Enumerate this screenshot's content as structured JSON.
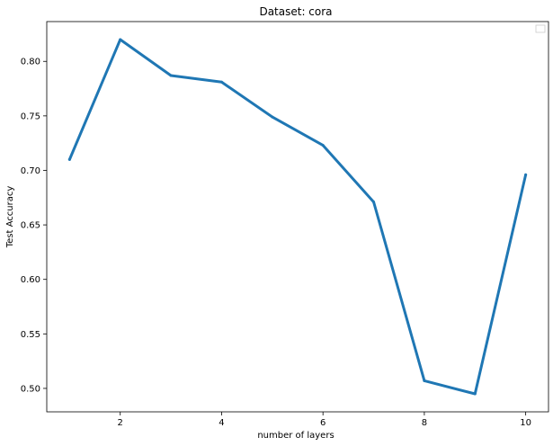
{
  "chart_data": {
    "type": "line",
    "title": "Dataset: cora",
    "xlabel": "number of layers",
    "ylabel": "Test Accuracy",
    "x": [
      1,
      2,
      3,
      4,
      5,
      6,
      7,
      8,
      9,
      10
    ],
    "series": [
      {
        "values": [
          0.71,
          0.82,
          0.787,
          0.781,
          0.749,
          0.723,
          0.671,
          0.507,
          0.495,
          0.696
        ],
        "color": "#1f77b4"
      }
    ],
    "xlim": [
      0.55,
      10.45
    ],
    "ylim": [
      0.4785,
      0.8365
    ],
    "xticks": [
      2,
      4,
      6,
      8,
      10
    ],
    "xtick_labels": [
      "2",
      "4",
      "6",
      "8",
      "10"
    ],
    "yticks": [
      0.5,
      0.55,
      0.6,
      0.65,
      0.7,
      0.75,
      0.8
    ],
    "ytick_labels": [
      "0.50",
      "0.55",
      "0.60",
      "0.65",
      "0.70",
      "0.75",
      "0.80"
    ],
    "grid": false,
    "legend": {
      "location": "top-right",
      "entries": []
    }
  }
}
